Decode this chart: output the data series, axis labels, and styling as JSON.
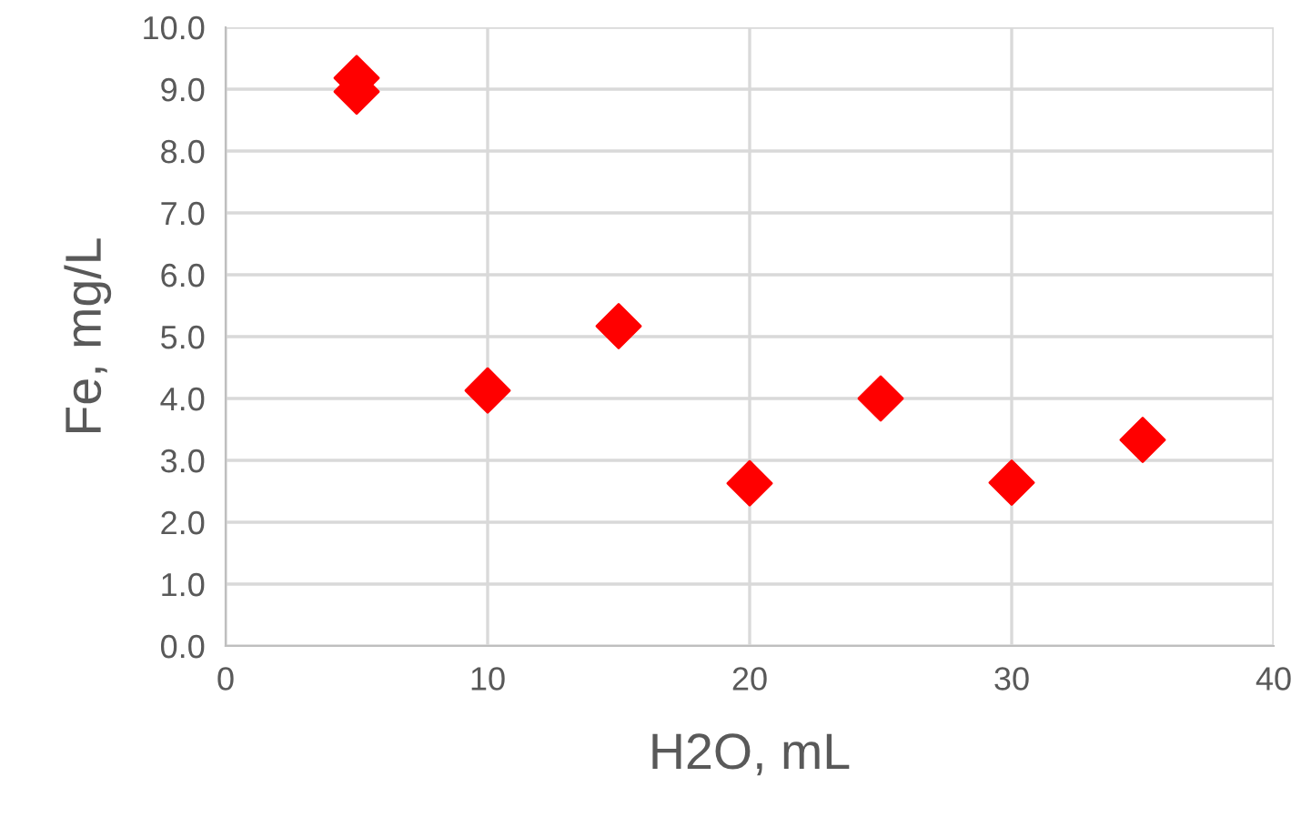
{
  "chart_data": {
    "type": "scatter",
    "xlabel": "H2O, mL",
    "ylabel": "Fe, mg/L",
    "x": [
      5,
      5,
      10,
      15,
      20,
      25,
      30,
      35
    ],
    "series": [
      {
        "color": "#ff0000",
        "values": [
          9.18,
          8.96,
          4.13,
          5.17,
          2.63,
          4.0,
          2.64,
          3.33
        ]
      }
    ],
    "marker": "diamond",
    "grid": true,
    "xlim": [
      0,
      40
    ],
    "xticks": [
      0,
      10,
      20,
      30,
      40
    ],
    "ylim": [
      0,
      10
    ],
    "yticks": [
      {
        "value": 0,
        "label": "0.0"
      },
      {
        "value": 1,
        "label": "1.0"
      },
      {
        "value": 2,
        "label": "2.0"
      },
      {
        "value": 3,
        "label": "3.0"
      },
      {
        "value": 4,
        "label": "4.0"
      },
      {
        "value": 5,
        "label": "5.0"
      },
      {
        "value": 6,
        "label": "6.0"
      },
      {
        "value": 7,
        "label": "7.0"
      },
      {
        "value": 8,
        "label": "8.0"
      },
      {
        "value": 9,
        "label": "9.0"
      },
      {
        "value": 10,
        "label": "10.0"
      }
    ]
  }
}
